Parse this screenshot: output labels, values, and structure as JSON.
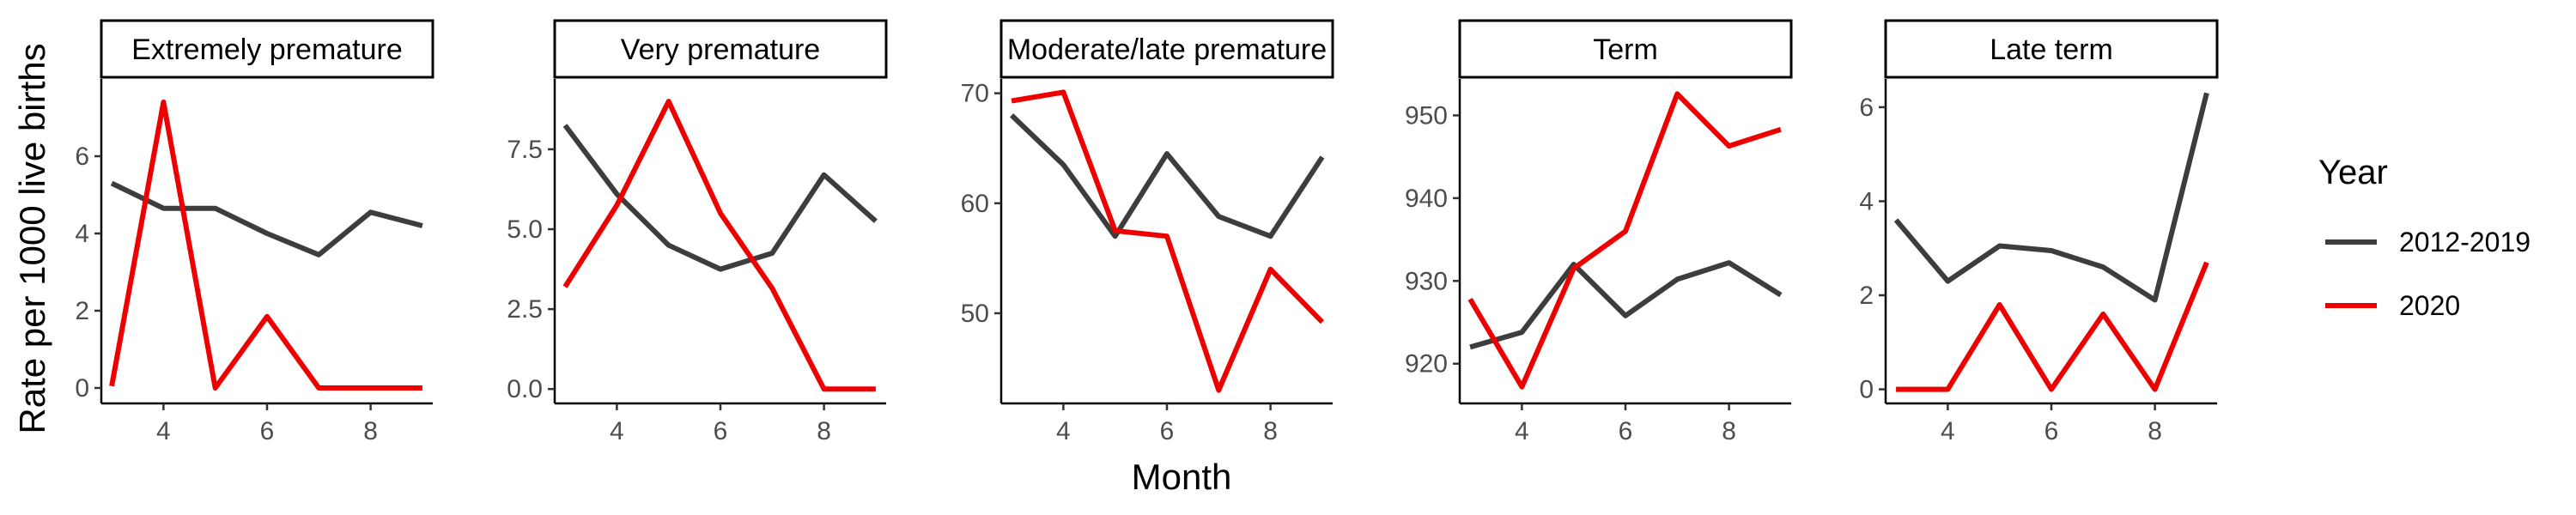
{
  "chart_data": {
    "type": "line",
    "xlabel": "Month",
    "ylabel": "Rate per 1000 live births",
    "legend": {
      "title": "Year",
      "placement": "right",
      "entries": [
        {
          "name": "2012-2019",
          "color": "#3d3d3d"
        },
        {
          "name": "2020",
          "color": "#ee0000"
        }
      ]
    },
    "grid": false,
    "x": [
      3,
      4,
      5,
      6,
      7,
      8,
      9
    ],
    "xlim": [
      2.8,
      9.2
    ],
    "xticks": [
      4,
      6,
      8
    ],
    "xtick_labels": [
      "4",
      "6",
      "8"
    ],
    "panels": [
      {
        "title": "Extremely premature",
        "ylim": [
          -0.4,
          8.0
        ],
        "yticks": [
          0,
          2,
          4,
          6
        ],
        "ytick_labels": [
          "0",
          "2",
          "4",
          "6"
        ],
        "series": [
          {
            "name": "2012-2019",
            "values": [
              5.3,
              4.65,
              4.65,
              4.0,
              3.45,
              4.55,
              4.2
            ]
          },
          {
            "name": "2020",
            "values": [
              0.05,
              7.4,
              0.0,
              1.85,
              0.0,
              0.0,
              0.0
            ]
          }
        ]
      },
      {
        "title": "Very premature",
        "ylim": [
          -0.45,
          9.7
        ],
        "yticks": [
          0,
          2.5,
          5,
          7.5
        ],
        "ytick_labels": [
          "0.0",
          "2.5",
          "5.0",
          "7.5"
        ],
        "series": [
          {
            "name": "2012-2019",
            "values": [
              8.25,
              6.1,
              4.5,
              3.75,
              4.25,
              6.7,
              5.25
            ]
          },
          {
            "name": "2020",
            "values": [
              3.2,
              5.75,
              9.0,
              5.5,
              3.15,
              0.0,
              0.0
            ]
          }
        ]
      },
      {
        "title": "Moderate/late premature",
        "ylim": [
          41.8,
          71.3
        ],
        "yticks": [
          50,
          60,
          70
        ],
        "ytick_labels": [
          "50",
          "60",
          "70"
        ],
        "series": [
          {
            "name": "2012-2019",
            "values": [
              68.0,
              63.5,
              57.0,
              64.5,
              58.8,
              57.0,
              64.2
            ]
          },
          {
            "name": "2020",
            "values": [
              69.3,
              70.1,
              57.5,
              57.0,
              43.0,
              54.0,
              49.2
            ]
          }
        ]
      },
      {
        "title": "Term",
        "ylim": [
          915.2,
          954.4
        ],
        "yticks": [
          920,
          930,
          940,
          950
        ],
        "ytick_labels": [
          "920",
          "930",
          "940",
          "950"
        ],
        "series": [
          {
            "name": "2012-2019",
            "values": [
              922.0,
              923.8,
              932.0,
              925.8,
              930.2,
              932.2,
              928.3
            ]
          },
          {
            "name": "2020",
            "values": [
              927.8,
              917.2,
              931.5,
              936.0,
              952.6,
              946.3,
              948.3
            ]
          }
        ]
      },
      {
        "title": "Late term",
        "ylim": [
          -0.3,
          6.6
        ],
        "yticks": [
          0,
          2,
          4,
          6
        ],
        "ytick_labels": [
          "0",
          "2",
          "4",
          "6"
        ],
        "series": [
          {
            "name": "2012-2019",
            "values": [
              3.6,
              2.3,
              3.05,
              2.95,
              2.6,
              1.9,
              6.3
            ]
          },
          {
            "name": "2020",
            "values": [
              0.0,
              0.0,
              1.8,
              0.0,
              1.6,
              0.0,
              2.7
            ]
          }
        ]
      }
    ]
  }
}
